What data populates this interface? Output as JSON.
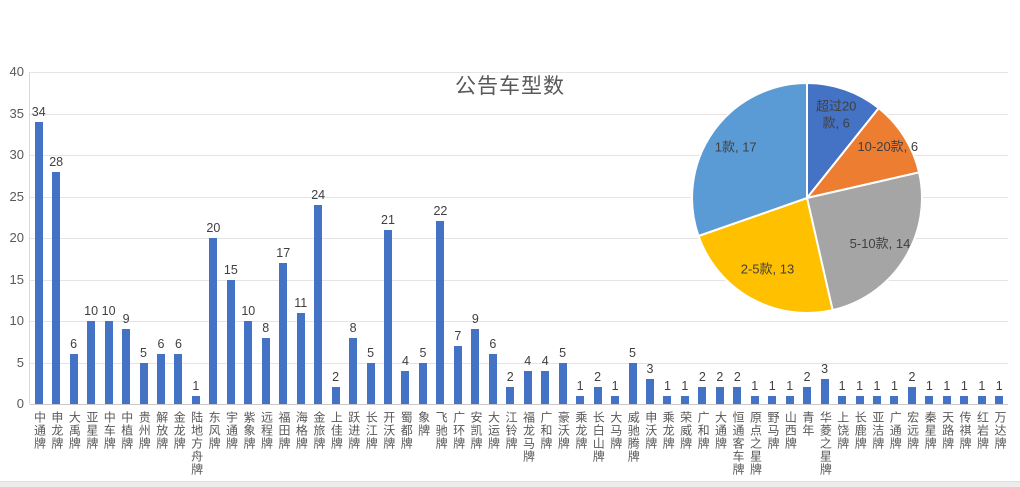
{
  "title": "公告车型数",
  "colors": {
    "bar": "#4472C4",
    "grid": "#E4E4E4",
    "baseline": "#C9C9C9",
    "axis_line": "#D9D9D9",
    "tick_text": "#595959",
    "value_text": "#3F3F3F",
    "pie_label_text": "#404040",
    "background": "#FFFFFF"
  },
  "chart_data": [
    {
      "type": "bar",
      "title": "公告车型数",
      "xlabel": "",
      "ylabel": "",
      "ylim": [
        0,
        40
      ],
      "yticks": [
        0,
        5,
        10,
        15,
        20,
        25,
        30,
        35,
        40
      ],
      "grid": true,
      "legend_position": "none",
      "data_labels": true,
      "categories": [
        "中通牌",
        "申龙牌",
        "大禹牌",
        "亚星牌",
        "中车牌",
        "中植牌",
        "贵州牌",
        "解放牌",
        "金龙牌",
        "陆地方舟牌",
        "东风牌",
        "宇通牌",
        "紫象牌",
        "远程牌",
        "福田牌",
        "海格牌",
        "金旅牌",
        "上佳牌",
        "跃进牌",
        "长江牌",
        "开沃牌",
        "蜀都牌",
        "象牌",
        "飞驰牌",
        "广环牌",
        "安凯牌",
        "大运牌",
        "江铃牌",
        "福龙马牌",
        "广和牌",
        "豪沃牌",
        "乘龙牌",
        "长白山牌",
        "大马牌",
        "威驰腾牌",
        "申沃牌",
        "乘龙牌",
        "荣威牌",
        "广和牌",
        "大通牌",
        "恒通客车牌",
        "原点之星牌",
        "野马牌",
        "山西牌",
        "青年",
        "华菱之星牌",
        "上饶牌",
        "长鹿牌",
        "亚洁牌",
        "广通牌",
        "宏远牌",
        "秦星牌",
        "天路牌",
        "传祺牌",
        "红岩牌",
        "万达牌"
      ],
      "values": [
        34,
        28,
        6,
        10,
        10,
        9,
        5,
        6,
        6,
        1,
        20,
        15,
        10,
        8,
        17,
        11,
        24,
        2,
        8,
        5,
        21,
        4,
        5,
        22,
        7,
        9,
        6,
        2,
        4,
        4,
        5,
        1,
        2,
        1,
        5,
        3,
        1,
        1,
        2,
        2,
        2,
        1,
        1,
        1,
        2,
        3,
        1,
        1,
        1,
        1,
        2,
        1,
        1,
        1,
        1,
        1
      ]
    },
    {
      "type": "pie",
      "legend_position": "none",
      "labels_inside": true,
      "start_angle": 0,
      "direction": "clockwise",
      "slices": [
        {
          "label": "超过20款",
          "value": 6,
          "display": [
            "超过20",
            "款, 6"
          ],
          "color": "#4472C4"
        },
        {
          "label": "10-20款",
          "value": 6,
          "display": [
            "10-20款, 6"
          ],
          "color": "#ED7D31"
        },
        {
          "label": "5-10款",
          "value": 14,
          "display": [
            "5-10款, 14"
          ],
          "color": "#A5A5A5"
        },
        {
          "label": "2-5款",
          "value": 13,
          "display": [
            "2-5款, 13"
          ],
          "color": "#FFC000"
        },
        {
          "label": "1款",
          "value": 17,
          "display": [
            "1款, 17"
          ],
          "color": "#5B9BD5"
        }
      ]
    }
  ]
}
